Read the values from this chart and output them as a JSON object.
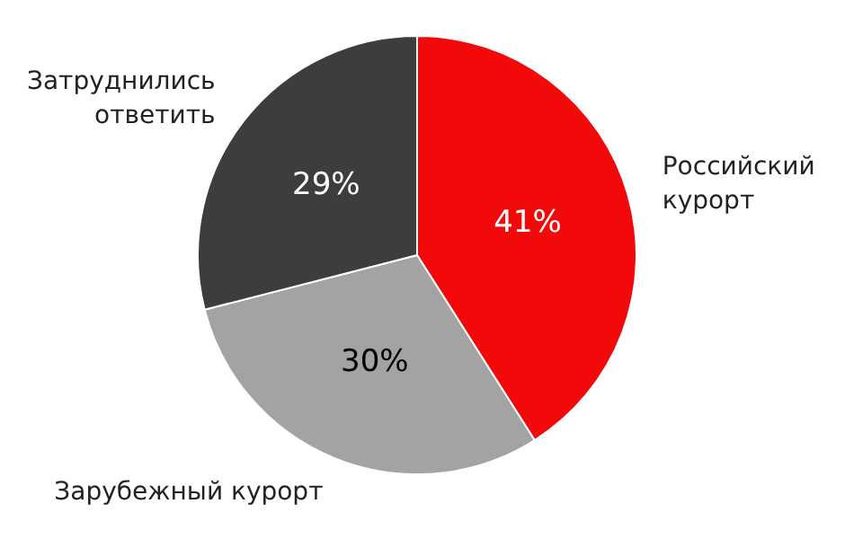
{
  "chart_data": {
    "type": "pie",
    "categories": [
      "Российский курорт",
      "Зарубежный курорт",
      "Затруднились ответить"
    ],
    "values": [
      41,
      30,
      29
    ],
    "value_labels": [
      "41%",
      "30%",
      "29%"
    ],
    "colors": [
      "#f20a0a",
      "#a3a3a3",
      "#3d3d3d"
    ]
  }
}
